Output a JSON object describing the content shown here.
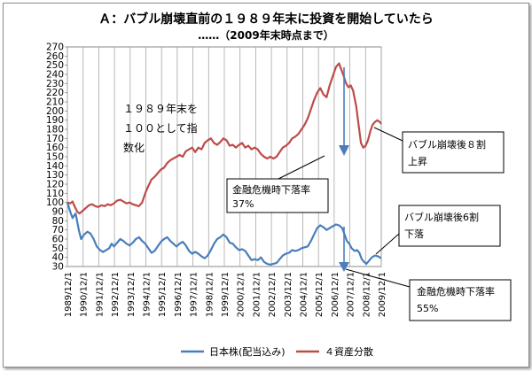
{
  "chart_data": {
    "type": "line",
    "title": "Ａ：バブル崩壊直前の１９８９年末に投資を開始していたら",
    "subtitle": "……（2009年末時点まで）",
    "xlabel": "",
    "ylabel": "",
    "ylim": [
      30,
      270
    ],
    "y_ticks": [
      30,
      40,
      50,
      60,
      70,
      80,
      90,
      100,
      110,
      120,
      130,
      140,
      150,
      160,
      170,
      180,
      190,
      200,
      210,
      220,
      230,
      240,
      250,
      260,
      270
    ],
    "x_tick_labels": [
      "1989/12/1",
      "1990/12/1",
      "1991/12/1",
      "1992/12/1",
      "1993/12/1",
      "1994/12/1",
      "1995/12/1",
      "1996/12/1",
      "1997/12/1",
      "1998/12/1",
      "1999/12/1",
      "2000/12/1",
      "2001/12/1",
      "2002/12/1",
      "2003/12/1",
      "2004/12/1",
      "2005/12/1",
      "2006/12/1",
      "2007/12/1",
      "2008/12/1",
      "2009/12/1"
    ],
    "x_range": [
      1989.92,
      2010.0
    ],
    "grid": "vertical",
    "legend_position": "bottom",
    "series": [
      {
        "name": "日本株(配当込み)",
        "color": "#4a7ebb",
        "points": [
          [
            1989.92,
            100
          ],
          [
            1990.1,
            90
          ],
          [
            1990.25,
            83
          ],
          [
            1990.45,
            88
          ],
          [
            1990.65,
            70
          ],
          [
            1990.8,
            60
          ],
          [
            1991.0,
            65
          ],
          [
            1991.2,
            68
          ],
          [
            1991.4,
            66
          ],
          [
            1991.6,
            60
          ],
          [
            1991.8,
            52
          ],
          [
            1992.0,
            48
          ],
          [
            1992.2,
            46
          ],
          [
            1992.4,
            48
          ],
          [
            1992.6,
            50
          ],
          [
            1992.75,
            55
          ],
          [
            1992.9,
            52
          ],
          [
            1993.1,
            56
          ],
          [
            1993.3,
            60
          ],
          [
            1993.5,
            58
          ],
          [
            1993.7,
            55
          ],
          [
            1993.9,
            53
          ],
          [
            1994.1,
            56
          ],
          [
            1994.3,
            60
          ],
          [
            1994.5,
            62
          ],
          [
            1994.7,
            58
          ],
          [
            1994.9,
            55
          ],
          [
            1995.1,
            50
          ],
          [
            1995.3,
            45
          ],
          [
            1995.5,
            47
          ],
          [
            1995.7,
            52
          ],
          [
            1995.9,
            57
          ],
          [
            1996.1,
            60
          ],
          [
            1996.3,
            62
          ],
          [
            1996.5,
            58
          ],
          [
            1996.7,
            55
          ],
          [
            1996.9,
            52
          ],
          [
            1997.1,
            55
          ],
          [
            1997.3,
            57
          ],
          [
            1997.5,
            53
          ],
          [
            1997.7,
            47
          ],
          [
            1997.9,
            44
          ],
          [
            1998.1,
            46
          ],
          [
            1998.3,
            44
          ],
          [
            1998.5,
            41
          ],
          [
            1998.7,
            39
          ],
          [
            1998.9,
            42
          ],
          [
            1999.1,
            48
          ],
          [
            1999.3,
            55
          ],
          [
            1999.5,
            60
          ],
          [
            1999.7,
            62
          ],
          [
            1999.9,
            65
          ],
          [
            2000.1,
            62
          ],
          [
            2000.3,
            56
          ],
          [
            2000.5,
            55
          ],
          [
            2000.7,
            51
          ],
          [
            2000.9,
            48
          ],
          [
            2001.1,
            49
          ],
          [
            2001.3,
            47
          ],
          [
            2001.5,
            42
          ],
          [
            2001.7,
            37
          ],
          [
            2001.9,
            38
          ],
          [
            2002.1,
            37
          ],
          [
            2002.3,
            40
          ],
          [
            2002.5,
            35
          ],
          [
            2002.7,
            33
          ],
          [
            2002.9,
            32
          ],
          [
            2003.1,
            33
          ],
          [
            2003.3,
            34
          ],
          [
            2003.5,
            38
          ],
          [
            2003.7,
            42
          ],
          [
            2003.9,
            44
          ],
          [
            2004.1,
            45
          ],
          [
            2004.3,
            48
          ],
          [
            2004.5,
            47
          ],
          [
            2004.7,
            48
          ],
          [
            2004.9,
            50
          ],
          [
            2005.1,
            51
          ],
          [
            2005.3,
            52
          ],
          [
            2005.5,
            58
          ],
          [
            2005.7,
            65
          ],
          [
            2005.9,
            72
          ],
          [
            2006.1,
            75
          ],
          [
            2006.3,
            73
          ],
          [
            2006.5,
            70
          ],
          [
            2006.7,
            72
          ],
          [
            2006.9,
            74
          ],
          [
            2007.1,
            76
          ],
          [
            2007.3,
            75
          ],
          [
            2007.5,
            72
          ],
          [
            2007.65,
            65
          ],
          [
            2007.8,
            58
          ],
          [
            2007.95,
            55
          ],
          [
            2008.1,
            50
          ],
          [
            2008.3,
            47
          ],
          [
            2008.45,
            48
          ],
          [
            2008.6,
            45
          ],
          [
            2008.75,
            38
          ],
          [
            2008.9,
            35
          ],
          [
            2009.05,
            33
          ],
          [
            2009.2,
            36
          ],
          [
            2009.4,
            40
          ],
          [
            2009.6,
            42
          ],
          [
            2009.8,
            41
          ],
          [
            2010.0,
            39
          ]
        ]
      },
      {
        "name": "４資産分散",
        "color": "#be4b48",
        "points": [
          [
            1989.92,
            100
          ],
          [
            1990.1,
            99
          ],
          [
            1990.25,
            101
          ],
          [
            1990.4,
            95
          ],
          [
            1990.55,
            90
          ],
          [
            1990.7,
            88
          ],
          [
            1990.9,
            91
          ],
          [
            1991.1,
            94
          ],
          [
            1991.3,
            97
          ],
          [
            1991.5,
            98
          ],
          [
            1991.7,
            96
          ],
          [
            1991.9,
            95
          ],
          [
            1992.1,
            97
          ],
          [
            1992.3,
            96
          ],
          [
            1992.5,
            98
          ],
          [
            1992.7,
            97
          ],
          [
            1992.9,
            99
          ],
          [
            1993.1,
            102
          ],
          [
            1993.3,
            103
          ],
          [
            1993.5,
            101
          ],
          [
            1993.7,
            99
          ],
          [
            1993.9,
            100
          ],
          [
            1994.1,
            98
          ],
          [
            1994.3,
            97
          ],
          [
            1994.5,
            96
          ],
          [
            1994.7,
            100
          ],
          [
            1994.9,
            110
          ],
          [
            1995.1,
            118
          ],
          [
            1995.3,
            125
          ],
          [
            1995.5,
            128
          ],
          [
            1995.7,
            132
          ],
          [
            1995.9,
            136
          ],
          [
            1996.1,
            138
          ],
          [
            1996.3,
            143
          ],
          [
            1996.5,
            146
          ],
          [
            1996.7,
            148
          ],
          [
            1996.9,
            150
          ],
          [
            1997.1,
            152
          ],
          [
            1997.3,
            150
          ],
          [
            1997.5,
            156
          ],
          [
            1997.7,
            158
          ],
          [
            1997.9,
            160
          ],
          [
            1998.1,
            155
          ],
          [
            1998.3,
            160
          ],
          [
            1998.5,
            158
          ],
          [
            1998.7,
            165
          ],
          [
            1998.9,
            168
          ],
          [
            1999.1,
            170
          ],
          [
            1999.3,
            165
          ],
          [
            1999.5,
            163
          ],
          [
            1999.7,
            166
          ],
          [
            1999.9,
            170
          ],
          [
            2000.1,
            168
          ],
          [
            2000.3,
            162
          ],
          [
            2000.5,
            163
          ],
          [
            2000.7,
            160
          ],
          [
            2000.9,
            163
          ],
          [
            2001.1,
            165
          ],
          [
            2001.3,
            160
          ],
          [
            2001.5,
            162
          ],
          [
            2001.7,
            158
          ],
          [
            2001.9,
            160
          ],
          [
            2002.1,
            158
          ],
          [
            2002.3,
            153
          ],
          [
            2002.5,
            150
          ],
          [
            2002.7,
            148
          ],
          [
            2002.9,
            150
          ],
          [
            2003.1,
            148
          ],
          [
            2003.3,
            150
          ],
          [
            2003.5,
            155
          ],
          [
            2003.7,
            160
          ],
          [
            2003.9,
            162
          ],
          [
            2004.1,
            165
          ],
          [
            2004.3,
            170
          ],
          [
            2004.5,
            172
          ],
          [
            2004.7,
            175
          ],
          [
            2004.9,
            180
          ],
          [
            2005.1,
            185
          ],
          [
            2005.3,
            192
          ],
          [
            2005.5,
            202
          ],
          [
            2005.7,
            212
          ],
          [
            2005.9,
            220
          ],
          [
            2006.1,
            225
          ],
          [
            2006.3,
            218
          ],
          [
            2006.5,
            215
          ],
          [
            2006.7,
            228
          ],
          [
            2006.9,
            238
          ],
          [
            2007.1,
            248
          ],
          [
            2007.3,
            252
          ],
          [
            2007.45,
            245
          ],
          [
            2007.6,
            238
          ],
          [
            2007.75,
            230
          ],
          [
            2007.9,
            226
          ],
          [
            2008.05,
            228
          ],
          [
            2008.2,
            222
          ],
          [
            2008.4,
            205
          ],
          [
            2008.55,
            185
          ],
          [
            2008.7,
            165
          ],
          [
            2008.85,
            160
          ],
          [
            2009.0,
            162
          ],
          [
            2009.15,
            168
          ],
          [
            2009.3,
            178
          ],
          [
            2009.45,
            185
          ],
          [
            2009.6,
            188
          ],
          [
            2009.75,
            190
          ],
          [
            2009.9,
            188
          ],
          [
            2010.0,
            186
          ]
        ]
      }
    ],
    "annotations": [
      {
        "text_lines": [
          "１９８９年末を",
          "１００として指",
          "数化"
        ]
      },
      {
        "text_lines": [
          "バブル崩壊後８割",
          "上昇"
        ]
      },
      {
        "text_lines": [
          "金融危機時下落率",
          "37%"
        ]
      },
      {
        "text_lines": [
          "バブル崩壊後6割",
          "下落"
        ]
      },
      {
        "text_lines": [
          "金融危機時下落率",
          "55%"
        ]
      }
    ]
  }
}
